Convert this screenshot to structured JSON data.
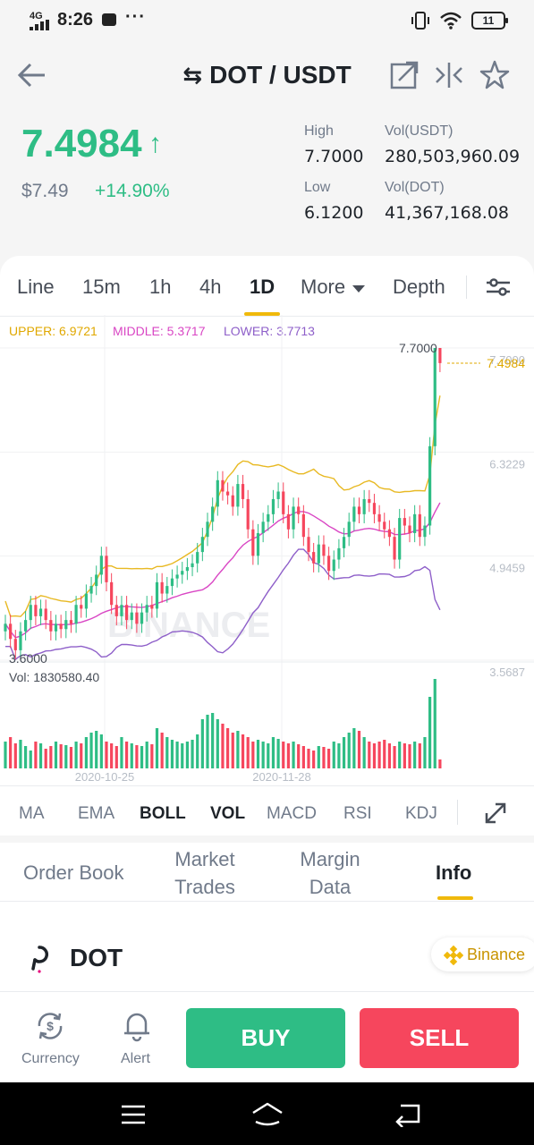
{
  "status_bar": {
    "network": "4G",
    "time": "8:26",
    "more": "···",
    "battery": "11"
  },
  "header": {
    "pair": "DOT / USDT",
    "icons": [
      "back-arrow-icon",
      "swap-icon",
      "external-link-icon",
      "compare-icon",
      "star-icon"
    ]
  },
  "price": {
    "last": "7.4984",
    "arrow": "↑",
    "usd": "$7.49",
    "change": "+14.90%",
    "high_label": "High",
    "high": "7.7000",
    "low_label": "Low",
    "low": "6.1200",
    "vol_quote_label": "Vol(USDT)",
    "vol_quote": "280,503,960.09",
    "vol_base_label": "Vol(DOT)",
    "vol_base": "41,367,168.08"
  },
  "timeframes": {
    "line": "Line",
    "m15": "15m",
    "h1": "1h",
    "h4": "4h",
    "d1": "1D",
    "more": "More",
    "depth": "Depth",
    "active": "1D"
  },
  "boll": {
    "upper": "UPPER: 6.9721",
    "middle": "MIDDLE: 5.3717",
    "lower": "LOWER: 3.7713"
  },
  "chart_data": {
    "type": "candlestick",
    "y_ticks": [
      "7.7000",
      "6.3229",
      "4.9459",
      "3.5687"
    ],
    "max_label": "7.7000",
    "min_label": "3.6000",
    "last_price_label": "7.4984",
    "x_ticks": [
      "2020-10-25",
      "2020-11-28"
    ],
    "volume_label": "Vol: 1830580.40",
    "watermark": "BINANCE",
    "colors": {
      "up": "#2ebd85",
      "down": "#f6465d",
      "upper": "#e8b923",
      "middle": "#d946c4",
      "lower": "#8e5fc9"
    },
    "closes": [
      4.05,
      3.85,
      3.7,
      3.95,
      4.1,
      4.3,
      4.15,
      4.25,
      4.1,
      3.95,
      4.05,
      3.98,
      4.1,
      4.05,
      4.3,
      4.25,
      4.45,
      4.55,
      4.7,
      4.95,
      4.6,
      4.3,
      4.15,
      4.3,
      4.1,
      4.2,
      4.05,
      4.2,
      4.3,
      4.25,
      4.6,
      4.45,
      4.55,
      4.65,
      4.7,
      4.75,
      4.8,
      4.85,
      5.0,
      5.2,
      5.4,
      5.6,
      5.95,
      5.8,
      5.75,
      5.6,
      5.9,
      5.7,
      5.3,
      4.95,
      5.25,
      5.4,
      5.5,
      5.7,
      5.8,
      5.5,
      5.3,
      5.6,
      5.5,
      5.2,
      5.0,
      4.85,
      5.1,
      4.95,
      4.75,
      4.9,
      5.05,
      5.2,
      5.4,
      5.6,
      5.5,
      5.7,
      5.65,
      5.5,
      5.4,
      5.3,
      5.2,
      4.9,
      5.45,
      5.35,
      5.25,
      5.5,
      5.2,
      5.35,
      6.4,
      7.7,
      7.5
    ],
    "volumes": [
      0.3,
      0.35,
      0.28,
      0.32,
      0.25,
      0.2,
      0.3,
      0.28,
      0.22,
      0.25,
      0.3,
      0.27,
      0.26,
      0.24,
      0.3,
      0.28,
      0.35,
      0.4,
      0.42,
      0.38,
      0.3,
      0.28,
      0.25,
      0.35,
      0.3,
      0.28,
      0.26,
      0.25,
      0.3,
      0.27,
      0.45,
      0.4,
      0.35,
      0.32,
      0.3,
      0.28,
      0.3,
      0.32,
      0.38,
      0.55,
      0.6,
      0.62,
      0.55,
      0.5,
      0.45,
      0.4,
      0.42,
      0.38,
      0.35,
      0.3,
      0.32,
      0.3,
      0.28,
      0.35,
      0.33,
      0.3,
      0.28,
      0.3,
      0.27,
      0.25,
      0.22,
      0.2,
      0.25,
      0.24,
      0.22,
      0.3,
      0.28,
      0.35,
      0.4,
      0.45,
      0.42,
      0.35,
      0.3,
      0.28,
      0.3,
      0.32,
      0.28,
      0.25,
      0.3,
      0.28,
      0.27,
      0.3,
      0.28,
      0.35,
      0.8,
      1.0,
      0.1
    ]
  },
  "indicators": {
    "ma": "MA",
    "ema": "EMA",
    "boll": "BOLL",
    "vol": "VOL",
    "macd": "MACD",
    "rsi": "RSI",
    "kdj": "KDJ"
  },
  "tabs": {
    "order_book": "Order Book",
    "market_trades_1": "Market",
    "market_trades_2": "Trades",
    "margin_1": "Margin",
    "margin_2": "Data",
    "info": "Info"
  },
  "coin": {
    "name": "DOT",
    "source": "Binance"
  },
  "bottom": {
    "currency": "Currency",
    "alert": "Alert",
    "buy": "BUY",
    "sell": "SELL"
  }
}
